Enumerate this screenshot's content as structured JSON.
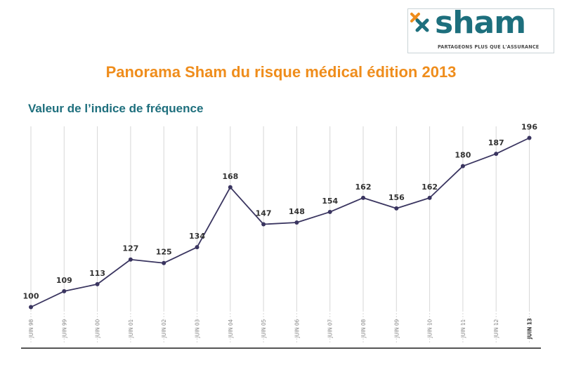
{
  "logo": {
    "name": "sham",
    "tagline": "PARTAGEONS PLUS QUE L'ASSURANCE",
    "colors": {
      "teal": "#1d6f7d",
      "orange": "#ef8d1c"
    }
  },
  "header": {
    "title": "Panorama Sham du risque médical édition 2013",
    "subtitle": "Valeur de l’indice de fréquence"
  },
  "colors": {
    "title": "#ef8d1c",
    "subtitle": "#1e6f7d",
    "line": "#3a3560",
    "grid": "#d7d7d7",
    "tick": "#8a8a8a"
  },
  "chart_data": {
    "type": "line",
    "title": "Valeur de l’indice de fréquence",
    "xlabel": "",
    "ylabel": "",
    "categories": [
      "JUIN 98",
      "JUIN 99",
      "JUIN 00",
      "JUIN 01",
      "JUIN 02",
      "JUIN 03",
      "JUIN 04",
      "JUIN 05",
      "JUIN 06",
      "JUIN 07",
      "JUIN 08",
      "JUIN 09",
      "JUIN 10",
      "JUIN 11",
      "JUIN 12",
      "JUIN 13"
    ],
    "values": [
      100,
      109,
      113,
      127,
      125,
      134,
      168,
      147,
      148,
      154,
      162,
      156,
      162,
      180,
      187,
      196
    ],
    "highlighted_category": "JUIN 13",
    "ylim": [
      100,
      196
    ],
    "grid": "vertical",
    "legend": "none"
  }
}
